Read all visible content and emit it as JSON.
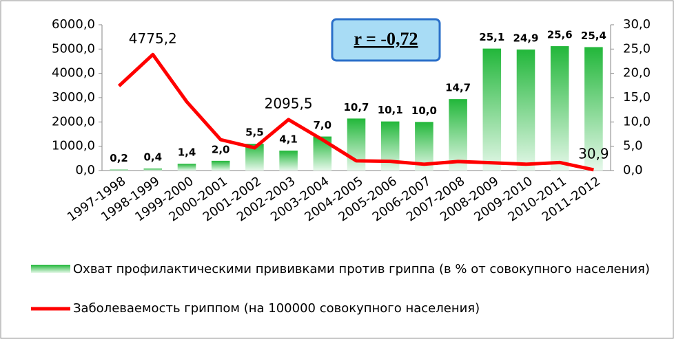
{
  "chart_data": {
    "type": "bar_line",
    "annotation": "r = -0,72",
    "categories": [
      "1997-1998",
      "1998-1999",
      "1999-2000",
      "2000-2001",
      "2001-2002",
      "2002-2003",
      "2003-2004",
      "2004-2005",
      "2005-2006",
      "2006-2007",
      "2007-2008",
      "2008-2009",
      "2009-2010",
      "2010-2011",
      "2011-2012"
    ],
    "series": [
      {
        "name": "Охват профилактическими прививками против гриппа (в % от совокупного населения)",
        "type": "bar",
        "axis": "y2",
        "color": "#22b73a",
        "values": [
          0.2,
          0.4,
          1.4,
          2.0,
          5.5,
          4.1,
          7.0,
          10.7,
          10.1,
          10.0,
          14.7,
          25.1,
          24.9,
          25.6,
          25.4
        ],
        "value_labels": [
          "0,2",
          "0,4",
          "1,4",
          "2,0",
          "5,5",
          "4,1",
          "7,0",
          "10,7",
          "10,1",
          "10,0",
          "14,7",
          "25,1",
          "24,9",
          "25,6",
          "25,4"
        ]
      },
      {
        "name": "Заболеваемость гриппом (на 100000 совокупного населения)",
        "type": "line",
        "color": "#ff0000",
        "values": [
          3480,
          4775.2,
          2830,
          1270,
          935,
          2095.5,
          1270,
          400,
          380,
          260,
          370,
          320,
          260,
          330,
          30.9
        ],
        "value_labels": [
          null,
          "4775,2",
          null,
          null,
          null,
          "2095,5",
          null,
          null,
          null,
          null,
          null,
          null,
          null,
          null,
          "30,9"
        ]
      }
    ],
    "ylim": [
      0,
      6000
    ],
    "yticks": [
      {
        "value": 0,
        "label": "0,0"
      },
      {
        "value": 1000,
        "label": "1000,0"
      },
      {
        "value": 2000,
        "label": "2000,0"
      },
      {
        "value": 3000,
        "label": "3000,0"
      },
      {
        "value": 4000,
        "label": "4000,0"
      },
      {
        "value": 5000,
        "label": "5000,0"
      },
      {
        "value": 6000,
        "label": "6000,0"
      }
    ],
    "y2lim": [
      0,
      30
    ],
    "y2ticks": [
      {
        "value": 0,
        "label": "0,0"
      },
      {
        "value": 5,
        "label": "5,0"
      },
      {
        "value": 10,
        "label": "10,0"
      },
      {
        "value": 15,
        "label": "15,0"
      },
      {
        "value": 20,
        "label": "20,0"
      },
      {
        "value": 25,
        "label": "25,0"
      },
      {
        "value": 30,
        "label": "30,0"
      }
    ],
    "grid": false
  }
}
